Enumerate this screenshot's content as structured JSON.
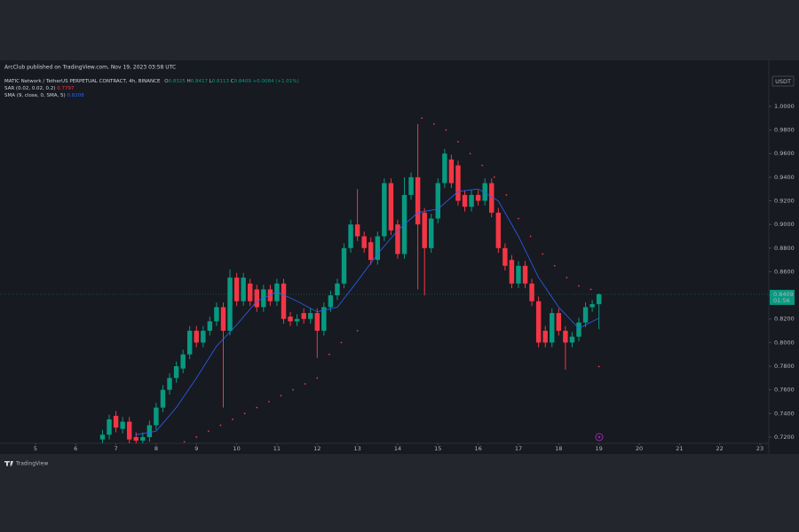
{
  "chart_data": {
    "type": "candlestick",
    "header": "ArcClub published on TradingView.com, Nov 19, 2023 03:58 UTC",
    "symbol": "MATIC Network / TetherUS PERPETUAL CONTRACT, 4h, BINANCE",
    "ohlc_letters": [
      "O",
      "H",
      "L",
      "C"
    ],
    "change": "+0.0084 (+1.01%)",
    "currency": "USDT",
    "countdown": "01:56",
    "brand": "TradingView",
    "up_color": "#089981",
    "down_color": "#f23645",
    "grid": false,
    "xlim": [
      4.12,
      23.22
    ],
    "xticks": [
      5,
      6,
      7,
      8,
      9,
      10,
      11,
      12,
      13,
      14,
      15,
      16,
      17,
      18,
      19,
      20,
      21,
      22,
      23
    ],
    "ylim": [
      0.7147,
      1.039
    ],
    "yticks": [
      {
        "value": 0.72,
        "label": "0.7200"
      },
      {
        "value": 0.74,
        "label": "0.7400"
      },
      {
        "value": 0.76,
        "label": "0.7600"
      },
      {
        "value": 0.78,
        "label": "0.7800"
      },
      {
        "value": 0.8,
        "label": "0.8000"
      },
      {
        "value": 0.82,
        "label": "0.8200"
      },
      {
        "value": 0.84,
        "label": "0.8400"
      },
      {
        "value": 0.86,
        "label": "0.8600"
      },
      {
        "value": 0.88,
        "label": "0.8800"
      },
      {
        "value": 0.9,
        "label": "0.9000"
      },
      {
        "value": 0.92,
        "label": "0.9200"
      },
      {
        "value": 0.94,
        "label": "0.9400"
      },
      {
        "value": 0.96,
        "label": "0.9600"
      },
      {
        "value": 0.98,
        "label": "0.9800"
      },
      {
        "value": 1.0,
        "label": "1.0000"
      }
    ],
    "x": [
      6.667,
      6.833,
      7.0,
      7.167,
      7.333,
      7.5,
      7.667,
      7.833,
      8.0,
      8.167,
      8.333,
      8.5,
      8.667,
      8.833,
      9.0,
      9.167,
      9.333,
      9.5,
      9.667,
      9.833,
      10.0,
      10.167,
      10.333,
      10.5,
      10.667,
      10.833,
      11.0,
      11.167,
      11.333,
      11.5,
      11.667,
      11.833,
      12.0,
      12.167,
      12.333,
      12.5,
      12.667,
      12.833,
      13.0,
      13.167,
      13.333,
      13.5,
      13.667,
      13.833,
      14.0,
      14.167,
      14.333,
      14.5,
      14.667,
      14.833,
      15.0,
      15.167,
      15.333,
      15.5,
      15.667,
      15.833,
      16.0,
      16.167,
      16.333,
      16.5,
      16.667,
      16.833,
      17.0,
      17.167,
      17.333,
      17.5,
      17.667,
      17.833,
      18.0,
      18.167,
      18.333,
      18.5,
      18.667,
      18.833,
      19.0
    ],
    "open": [
      0.718,
      0.722,
      0.738,
      0.727,
      0.733,
      0.72,
      0.717,
      0.72,
      0.73,
      0.745,
      0.76,
      0.77,
      0.778,
      0.79,
      0.81,
      0.8,
      0.81,
      0.818,
      0.83,
      0.81,
      0.855,
      0.835,
      0.85,
      0.845,
      0.83,
      0.845,
      0.835,
      0.85,
      0.822,
      0.818,
      0.825,
      0.82,
      0.825,
      0.81,
      0.83,
      0.84,
      0.85,
      0.88,
      0.9,
      0.89,
      0.885,
      0.87,
      0.89,
      0.935,
      0.9,
      0.875,
      0.925,
      0.94,
      0.91,
      0.88,
      0.905,
      0.935,
      0.955,
      0.95,
      0.925,
      0.915,
      0.925,
      0.92,
      0.935,
      0.91,
      0.88,
      0.87,
      0.85,
      0.865,
      0.85,
      0.835,
      0.81,
      0.8,
      0.825,
      0.81,
      0.8,
      0.805,
      0.817,
      0.83,
      0.8325
    ],
    "high": [
      0.726,
      0.739,
      0.742,
      0.737,
      0.737,
      0.724,
      0.724,
      0.734,
      0.749,
      0.764,
      0.774,
      0.784,
      0.794,
      0.814,
      0.814,
      0.814,
      0.822,
      0.834,
      0.834,
      0.862,
      0.859,
      0.859,
      0.854,
      0.849,
      0.849,
      0.849,
      0.854,
      0.854,
      0.826,
      0.824,
      0.829,
      0.829,
      0.829,
      0.834,
      0.844,
      0.854,
      0.884,
      0.904,
      0.93,
      0.894,
      0.889,
      0.894,
      0.939,
      0.939,
      0.904,
      0.94,
      0.944,
      0.985,
      0.914,
      0.909,
      0.939,
      0.964,
      0.959,
      0.954,
      0.929,
      0.929,
      0.929,
      0.939,
      0.939,
      0.914,
      0.884,
      0.874,
      0.869,
      0.869,
      0.854,
      0.839,
      0.814,
      0.829,
      0.829,
      0.814,
      0.809,
      0.821,
      0.834,
      0.836,
      0.8417
    ],
    "low": [
      0.714,
      0.718,
      0.724,
      0.723,
      0.714,
      0.713,
      0.713,
      0.716,
      0.726,
      0.741,
      0.756,
      0.766,
      0.774,
      0.786,
      0.796,
      0.796,
      0.806,
      0.814,
      0.745,
      0.806,
      0.831,
      0.831,
      0.831,
      0.826,
      0.826,
      0.831,
      0.831,
      0.816,
      0.814,
      0.814,
      0.816,
      0.816,
      0.787,
      0.806,
      0.826,
      0.836,
      0.846,
      0.876,
      0.886,
      0.876,
      0.866,
      0.866,
      0.886,
      0.891,
      0.871,
      0.871,
      0.921,
      0.845,
      0.84,
      0.876,
      0.901,
      0.931,
      0.931,
      0.916,
      0.911,
      0.911,
      0.916,
      0.916,
      0.906,
      0.876,
      0.861,
      0.846,
      0.846,
      0.846,
      0.831,
      0.796,
      0.796,
      0.796,
      0.806,
      0.777,
      0.796,
      0.801,
      0.813,
      0.826,
      0.8113
    ],
    "close": [
      0.722,
      0.735,
      0.728,
      0.733,
      0.718,
      0.717,
      0.72,
      0.73,
      0.745,
      0.76,
      0.77,
      0.78,
      0.79,
      0.81,
      0.8,
      0.81,
      0.818,
      0.83,
      0.81,
      0.855,
      0.835,
      0.855,
      0.835,
      0.83,
      0.845,
      0.835,
      0.85,
      0.82,
      0.818,
      0.82,
      0.82,
      0.825,
      0.81,
      0.83,
      0.84,
      0.85,
      0.88,
      0.9,
      0.89,
      0.88,
      0.87,
      0.89,
      0.935,
      0.895,
      0.875,
      0.925,
      0.94,
      0.9,
      0.88,
      0.905,
      0.935,
      0.96,
      0.935,
      0.92,
      0.915,
      0.925,
      0.92,
      0.935,
      0.91,
      0.88,
      0.865,
      0.85,
      0.865,
      0.85,
      0.835,
      0.8,
      0.8,
      0.825,
      0.81,
      0.8,
      0.805,
      0.817,
      0.83,
      0.8325,
      0.8409
    ],
    "sma": {
      "name": "SMA (9, close, 0, SMA, 5)",
      "color": "#2962ff",
      "x": [
        7.5,
        8,
        8.5,
        9,
        9.5,
        10,
        10.5,
        11,
        11.5,
        12,
        12.5,
        13,
        13.5,
        14,
        14.5,
        15,
        15.5,
        16,
        16.5,
        17,
        17.5,
        18,
        18.5,
        19
      ],
      "values": [
        0.722,
        0.725,
        0.745,
        0.77,
        0.797,
        0.815,
        0.835,
        0.843,
        0.835,
        0.826,
        0.83,
        0.852,
        0.875,
        0.895,
        0.91,
        0.913,
        0.928,
        0.93,
        0.92,
        0.89,
        0.855,
        0.83,
        0.812,
        0.8208
      ]
    },
    "sar": {
      "name": "SAR (0.02, 0.02, 0.2)",
      "color": "#f23645",
      "x": [
        8.7,
        9.0,
        9.3,
        9.6,
        9.9,
        10.2,
        10.5,
        10.8,
        11.1,
        11.4,
        11.7,
        12.0,
        12.3,
        12.6,
        13.0,
        14.6,
        14.9,
        15.2,
        15.5,
        15.8,
        16.1,
        16.4,
        16.7,
        17.0,
        17.3,
        17.6,
        17.9,
        18.2,
        18.5,
        18.8,
        19.0
      ],
      "values": [
        0.716,
        0.72,
        0.725,
        0.73,
        0.735,
        0.74,
        0.745,
        0.75,
        0.755,
        0.76,
        0.765,
        0.77,
        0.79,
        0.8,
        0.81,
        0.99,
        0.985,
        0.98,
        0.97,
        0.96,
        0.95,
        0.94,
        0.925,
        0.905,
        0.89,
        0.875,
        0.865,
        0.855,
        0.848,
        0.845,
        0.7797
      ]
    }
  }
}
